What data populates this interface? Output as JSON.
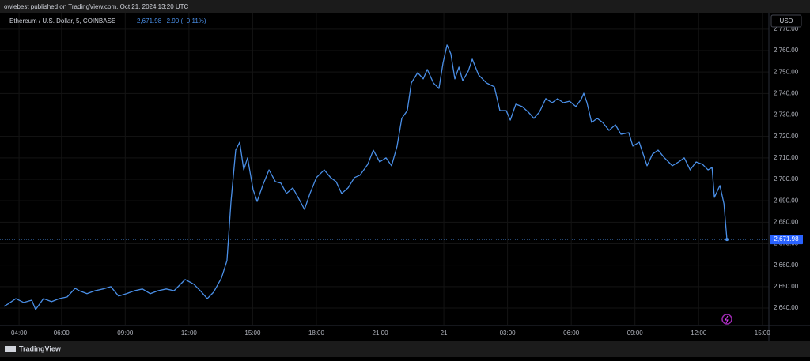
{
  "header": "owiebest published on TradingView.com, Oct 21, 2024 13:20 UTC",
  "footer": "TradingView",
  "currency": "USD",
  "chart_data": {
    "type": "line",
    "price_label": "2,671.98",
    "change_label": "−2.90 (−0.11%)",
    "x": [
      3.29,
      3.48,
      3.85,
      4.22,
      4.6,
      4.78,
      5.15,
      5.53,
      5.9,
      6.27,
      6.64,
      6.83,
      7.2,
      7.58,
      7.95,
      8.32,
      8.69,
      9.06,
      9.44,
      9.81,
      10.18,
      10.55,
      10.93,
      11.3,
      11.82,
      12.23,
      12.6,
      12.86,
      13.16,
      13.53,
      13.79,
      13.98,
      14.2,
      14.39,
      14.58,
      14.76,
      15.02,
      15.21,
      15.47,
      15.77,
      16.07,
      16.33,
      16.59,
      16.89,
      17.18,
      17.44,
      17.7,
      18.0,
      18.37,
      18.67,
      18.93,
      19.19,
      19.49,
      19.79,
      20.05,
      20.42,
      20.68,
      20.98,
      21.28,
      21.54,
      21.8,
      22.02,
      22.28,
      22.47,
      22.77,
      23.03,
      23.22,
      23.51,
      23.77,
      23.96,
      24.15,
      24.33,
      24.52,
      24.71,
      24.89,
      25.15,
      25.34,
      25.64,
      26.01,
      26.38,
      26.64,
      26.94,
      27.13,
      27.39,
      27.69,
      27.98,
      28.24,
      28.5,
      28.8,
      29.1,
      29.36,
      29.62,
      29.92,
      30.22,
      30.48,
      30.59,
      30.74,
      30.96,
      31.22,
      31.48,
      31.78,
      32.08,
      32.34,
      32.71,
      32.9,
      33.2,
      33.57,
      33.83,
      34.09,
      34.39,
      34.76,
      35.06,
      35.32,
      35.6,
      35.88,
      36.18,
      36.44,
      36.63,
      36.74,
      37.0,
      37.19,
      37.33
    ],
    "series": [
      {
        "name": "Ethereum / U.S. Dollar, 5, COINBASE",
        "color": "#4a8fe7",
        "values": [
          2640.8,
          2641.9,
          2644.4,
          2642.6,
          2643.7,
          2639.3,
          2644.4,
          2643.0,
          2644.4,
          2645.2,
          2649.2,
          2648.1,
          2646.7,
          2648.1,
          2648.9,
          2650.0,
          2645.6,
          2646.7,
          2648.1,
          2648.9,
          2646.7,
          2648.1,
          2648.9,
          2648.1,
          2653.3,
          2651.1,
          2647.4,
          2644.4,
          2647.4,
          2654.0,
          2662.1,
          2689.7,
          2713.6,
          2717.3,
          2704.4,
          2710.0,
          2695.2,
          2689.7,
          2697.1,
          2704.4,
          2698.9,
          2698.2,
          2693.4,
          2696.0,
          2690.8,
          2686.0,
          2693.4,
          2700.8,
          2704.4,
          2700.8,
          2698.9,
          2693.4,
          2696.0,
          2700.8,
          2701.9,
          2707.0,
          2713.6,
          2708.1,
          2710.0,
          2706.3,
          2715.5,
          2728.4,
          2732.0,
          2744.9,
          2749.7,
          2746.8,
          2751.2,
          2744.9,
          2742.3,
          2754.1,
          2762.6,
          2758.5,
          2746.8,
          2752.3,
          2746.0,
          2750.4,
          2756.0,
          2748.6,
          2744.9,
          2743.1,
          2732.0,
          2732.0,
          2727.6,
          2735.0,
          2733.9,
          2731.3,
          2728.4,
          2731.3,
          2737.6,
          2735.7,
          2737.6,
          2735.7,
          2736.4,
          2733.9,
          2737.6,
          2740.1,
          2735.7,
          2726.5,
          2728.4,
          2726.5,
          2722.8,
          2725.4,
          2721.0,
          2721.7,
          2715.5,
          2717.3,
          2706.3,
          2711.8,
          2713.6,
          2710.0,
          2706.3,
          2708.1,
          2710.0,
          2704.4,
          2708.1,
          2707.0,
          2704.4,
          2705.5,
          2691.6,
          2697.1,
          2688.6,
          2671.98
        ]
      }
    ],
    "xlim": [
      3.29,
      39.23
    ],
    "xticks": [
      {
        "value": 4,
        "label": "04:00"
      },
      {
        "value": 6,
        "label": "06:00"
      },
      {
        "value": 9,
        "label": "09:00"
      },
      {
        "value": 12,
        "label": "12:00"
      },
      {
        "value": 15,
        "label": "15:00"
      },
      {
        "value": 18,
        "label": "18:00"
      },
      {
        "value": 21,
        "label": "21:00"
      },
      {
        "value": 24,
        "label": "21"
      },
      {
        "value": 27,
        "label": "03:00"
      },
      {
        "value": 30,
        "label": "06:00"
      },
      {
        "value": 33,
        "label": "09:00"
      },
      {
        "value": 36,
        "label": "12:00"
      },
      {
        "value": 39,
        "label": "15:00"
      }
    ],
    "ylim": [
      2631.9,
      2777.3
    ],
    "yticks": [
      {
        "value": 2640,
        "label": "2,640.00"
      },
      {
        "value": 2650,
        "label": "2,650.00"
      },
      {
        "value": 2660,
        "label": "2,660.00"
      },
      {
        "value": 2670,
        "label": "2,670.00"
      },
      {
        "value": 2680,
        "label": "2,680.00"
      },
      {
        "value": 2690,
        "label": "2,690.00"
      },
      {
        "value": 2700,
        "label": "2,700.00"
      },
      {
        "value": 2710,
        "label": "2,710.00"
      },
      {
        "value": 2720,
        "label": "2,720.00"
      },
      {
        "value": 2730,
        "label": "2,730.00"
      },
      {
        "value": 2740,
        "label": "2,740.00"
      },
      {
        "value": 2750,
        "label": "2,750.00"
      },
      {
        "value": 2760,
        "label": "2,760.00"
      },
      {
        "value": 2770,
        "label": "2,770.00"
      }
    ],
    "grid": true
  }
}
